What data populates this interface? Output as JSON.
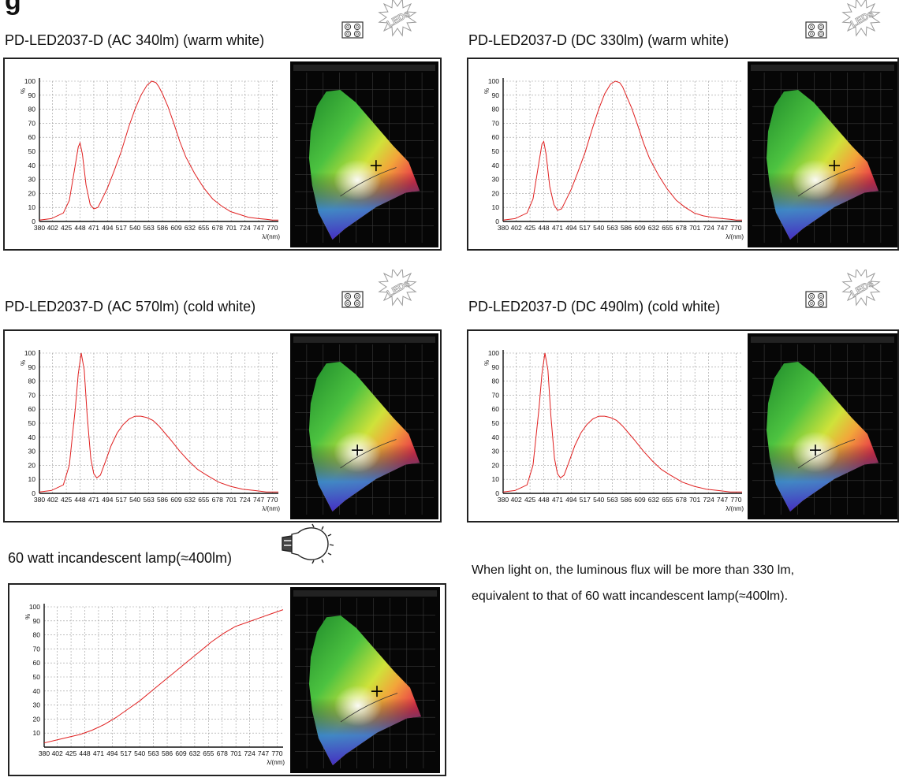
{
  "page": {
    "heading": "g"
  },
  "chart_data": [
    {
      "type": "line",
      "title": "PD-LED2037-D (AC 340lm) (warm white)",
      "ylabel": "%",
      "xlabel": "λ/(nm)",
      "xlim": [
        380,
        780
      ],
      "ylim": [
        0,
        100
      ],
      "xticks": [
        380,
        402,
        425,
        448,
        471,
        494,
        517,
        540,
        563,
        586,
        609,
        632,
        655,
        678,
        701,
        724,
        747,
        770
      ],
      "yticks": [
        0,
        10,
        20,
        30,
        40,
        50,
        60,
        70,
        80,
        90,
        100
      ],
      "series": [
        {
          "color": "#e02020",
          "x": [
            380,
            400,
            420,
            430,
            440,
            445,
            448,
            452,
            458,
            465,
            471,
            478,
            485,
            494,
            505,
            517,
            530,
            540,
            550,
            560,
            568,
            575,
            580,
            586,
            595,
            605,
            615,
            625,
            640,
            655,
            670,
            685,
            700,
            715,
            730,
            747,
            760,
            770,
            780
          ],
          "y": [
            1,
            2,
            6,
            15,
            40,
            53,
            56,
            48,
            26,
            12,
            9,
            10,
            16,
            24,
            36,
            50,
            68,
            80,
            90,
            97,
            100,
            99,
            96,
            91,
            82,
            70,
            57,
            46,
            34,
            24,
            16,
            11,
            7,
            5,
            3,
            2,
            1.5,
            1,
            1
          ]
        }
      ],
      "cie_marker": [
        0.45,
        0.41
      ],
      "grid": true
    },
    {
      "type": "line",
      "title": "PD-LED2037-D (DC 330lm) (warm white)",
      "ylabel": "%",
      "xlabel": "λ/(nm)",
      "xlim": [
        380,
        780
      ],
      "ylim": [
        0,
        100
      ],
      "xticks": [
        380,
        402,
        425,
        448,
        471,
        494,
        517,
        540,
        563,
        586,
        609,
        632,
        655,
        678,
        701,
        724,
        747,
        770
      ],
      "yticks": [
        0,
        10,
        20,
        30,
        40,
        50,
        60,
        70,
        80,
        90,
        100
      ],
      "series": [
        {
          "color": "#e02020",
          "x": [
            380,
            400,
            420,
            430,
            440,
            445,
            448,
            452,
            458,
            465,
            471,
            478,
            485,
            494,
            505,
            517,
            530,
            540,
            550,
            560,
            568,
            575,
            580,
            586,
            595,
            605,
            615,
            625,
            640,
            655,
            670,
            685,
            700,
            715,
            730,
            747,
            760,
            770,
            780
          ],
          "y": [
            1,
            2,
            6,
            16,
            42,
            55,
            57,
            48,
            25,
            12,
            8,
            9,
            15,
            23,
            35,
            49,
            67,
            80,
            91,
            98,
            100,
            99,
            96,
            90,
            81,
            69,
            56,
            45,
            33,
            23,
            15,
            10,
            6,
            4,
            3,
            2,
            1.5,
            1,
            1
          ]
        }
      ],
      "cie_marker": [
        0.45,
        0.41
      ],
      "grid": true
    },
    {
      "type": "line",
      "title": "PD-LED2037-D (AC 570lm) (cold white)",
      "ylabel": "%",
      "xlabel": "λ/(nm)",
      "xlim": [
        380,
        780
      ],
      "ylim": [
        0,
        100
      ],
      "xticks": [
        380,
        402,
        425,
        448,
        471,
        494,
        517,
        540,
        563,
        586,
        609,
        632,
        655,
        678,
        701,
        724,
        747,
        770
      ],
      "yticks": [
        0,
        10,
        20,
        30,
        40,
        50,
        60,
        70,
        80,
        90,
        100
      ],
      "series": [
        {
          "color": "#e02020",
          "x": [
            380,
            400,
            420,
            430,
            440,
            445,
            450,
            455,
            460,
            466,
            471,
            476,
            482,
            490,
            500,
            510,
            520,
            530,
            540,
            550,
            560,
            570,
            580,
            590,
            600,
            615,
            630,
            645,
            660,
            680,
            700,
            720,
            740,
            760,
            780
          ],
          "y": [
            1,
            2,
            6,
            20,
            60,
            85,
            100,
            88,
            55,
            25,
            14,
            11,
            13,
            22,
            34,
            43,
            49,
            53,
            55,
            55,
            54,
            52,
            48,
            43,
            38,
            30,
            23,
            17,
            13,
            8,
            5,
            3,
            2,
            1,
            1
          ]
        }
      ],
      "cie_marker": [
        0.33,
        0.34
      ],
      "grid": true
    },
    {
      "type": "line",
      "title": "PD-LED2037-D (DC 490lm) (cold white)",
      "ylabel": "%",
      "xlabel": "λ/(nm)",
      "xlim": [
        380,
        780
      ],
      "ylim": [
        0,
        100
      ],
      "xticks": [
        380,
        402,
        425,
        448,
        471,
        494,
        517,
        540,
        563,
        586,
        609,
        632,
        655,
        678,
        701,
        724,
        747,
        770
      ],
      "yticks": [
        0,
        10,
        20,
        30,
        40,
        50,
        60,
        70,
        80,
        90,
        100
      ],
      "series": [
        {
          "color": "#e02020",
          "x": [
            380,
            400,
            420,
            430,
            440,
            445,
            450,
            455,
            460,
            466,
            471,
            476,
            482,
            490,
            500,
            510,
            520,
            530,
            540,
            550,
            560,
            570,
            580,
            590,
            600,
            615,
            630,
            645,
            660,
            680,
            700,
            720,
            740,
            760,
            780
          ],
          "y": [
            1,
            2,
            6,
            20,
            60,
            85,
            100,
            88,
            55,
            25,
            14,
            11,
            13,
            22,
            34,
            43,
            49,
            53,
            55,
            55,
            54,
            52,
            48,
            43,
            38,
            30,
            23,
            17,
            13,
            8,
            5,
            3,
            2,
            1,
            1
          ]
        }
      ],
      "cie_marker": [
        0.33,
        0.34
      ],
      "grid": true
    },
    {
      "type": "line",
      "title": "60 watt incandescent lamp(≈400lm)",
      "ylabel": "%",
      "xlabel": "λ/(nm)",
      "xlim": [
        380,
        780
      ],
      "ylim": [
        0,
        100
      ],
      "xticks": [
        380,
        402,
        425,
        448,
        471,
        494,
        517,
        540,
        563,
        586,
        609,
        632,
        655,
        678,
        701,
        724,
        747,
        770
      ],
      "yticks": [
        10,
        20,
        30,
        40,
        50,
        60,
        70,
        80,
        90,
        100
      ],
      "series": [
        {
          "color": "#e02020",
          "x": [
            380,
            400,
            420,
            440,
            460,
            480,
            500,
            520,
            540,
            560,
            580,
            600,
            620,
            640,
            660,
            680,
            700,
            720,
            740,
            760,
            780
          ],
          "y": [
            3,
            5,
            7,
            9,
            12,
            16,
            21,
            27,
            33,
            40,
            47,
            54,
            61,
            68,
            75,
            81,
            86,
            89,
            92,
            95,
            98
          ]
        }
      ],
      "cie_marker": [
        0.45,
        0.41
      ],
      "grid": true
    }
  ],
  "description": {
    "line1": "When light on, the luminous flux will be more than 330 lm,",
    "line2": "equivalent to that of 60 watt incandescent lamp(≈400lm)."
  },
  "icons": {
    "led": "led-array-icon",
    "led_badge": "LEDs",
    "bulb": "lightbulb-icon"
  }
}
